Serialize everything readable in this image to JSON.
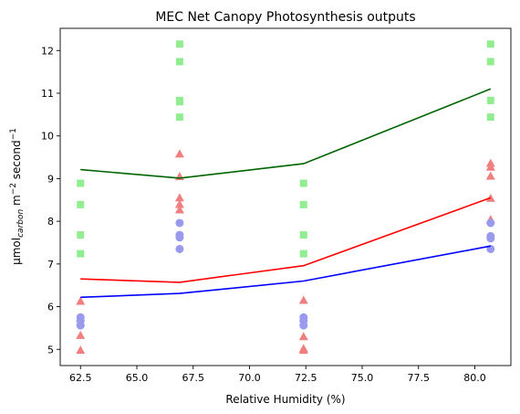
{
  "chart_data": {
    "type": "scatter",
    "title": "MEC Net Canopy Photosynthesis outputs",
    "xlabel": "Relative Humidity (%)",
    "ylabel_parts": {
      "base": "μmol",
      "sub": "carbon",
      "mid": " m",
      "sup1": "−2",
      "end": " second",
      "sup2": "−1"
    },
    "xlim": [
      61.6,
      81.6
    ],
    "ylim": [
      4.62,
      12.52
    ],
    "xticks": [
      62.5,
      65.0,
      67.5,
      70.0,
      72.5,
      75.0,
      77.5,
      80.0
    ],
    "xtick_labels": [
      "62.5",
      "65.0",
      "67.5",
      "70.0",
      "72.5",
      "75.0",
      "77.5",
      "80.0"
    ],
    "yticks": [
      5,
      6,
      7,
      8,
      9,
      10,
      11,
      12
    ],
    "ytick_labels": [
      "5",
      "6",
      "7",
      "8",
      "9",
      "10",
      "11",
      "12"
    ],
    "grid": false,
    "legend": false,
    "lines": [
      {
        "color": "#006400",
        "x": [
          62.5,
          66.9,
          72.4,
          80.7
        ],
        "y": [
          9.21,
          9.01,
          9.35,
          11.1
        ]
      },
      {
        "color": "#ff0000",
        "x": [
          62.5,
          66.9,
          72.4,
          80.7
        ],
        "y": [
          6.65,
          6.57,
          6.96,
          8.55
        ]
      },
      {
        "color": "#0000ff",
        "x": [
          62.5,
          66.9,
          72.4,
          80.7
        ],
        "y": [
          6.22,
          6.31,
          6.6,
          7.42
        ]
      }
    ],
    "scatter": [
      {
        "marker": "square",
        "color": "#90ee90",
        "points": [
          [
            62.5,
            8.89
          ],
          [
            62.5,
            8.39
          ],
          [
            62.5,
            7.68
          ],
          [
            62.5,
            7.24
          ],
          [
            66.9,
            12.15
          ],
          [
            66.9,
            11.74
          ],
          [
            66.9,
            10.83
          ],
          [
            66.9,
            10.8
          ],
          [
            66.9,
            10.44
          ],
          [
            72.4,
            8.89
          ],
          [
            72.4,
            8.39
          ],
          [
            72.4,
            7.68
          ],
          [
            72.4,
            7.24
          ],
          [
            80.7,
            12.15
          ],
          [
            80.7,
            11.74
          ],
          [
            80.7,
            10.83
          ],
          [
            80.7,
            10.44
          ]
        ]
      },
      {
        "marker": "triangle",
        "color": "#f08080",
        "points": [
          [
            62.5,
            6.13
          ],
          [
            62.5,
            5.74
          ],
          [
            62.5,
            5.33
          ],
          [
            62.5,
            4.98
          ],
          [
            66.9,
            9.58
          ],
          [
            66.9,
            9.05
          ],
          [
            66.9,
            8.55
          ],
          [
            66.9,
            8.4
          ],
          [
            66.9,
            8.27
          ],
          [
            72.4,
            6.15
          ],
          [
            72.4,
            5.74
          ],
          [
            72.4,
            5.3
          ],
          [
            72.4,
            5.02
          ],
          [
            72.4,
            4.98
          ],
          [
            80.7,
            9.36
          ],
          [
            80.7,
            9.27
          ],
          [
            80.7,
            9.06
          ],
          [
            80.7,
            8.54
          ],
          [
            80.7,
            8.04
          ]
        ]
      },
      {
        "marker": "circle",
        "color": "#9999ee",
        "points": [
          [
            62.5,
            5.75
          ],
          [
            62.5,
            5.67
          ],
          [
            62.5,
            5.56
          ],
          [
            66.9,
            7.96
          ],
          [
            66.9,
            7.68
          ],
          [
            66.9,
            7.62
          ],
          [
            66.9,
            7.35
          ],
          [
            72.4,
            5.75
          ],
          [
            72.4,
            5.67
          ],
          [
            72.4,
            5.56
          ],
          [
            80.7,
            7.96
          ],
          [
            80.7,
            7.65
          ],
          [
            80.7,
            7.6
          ],
          [
            80.7,
            7.35
          ]
        ]
      }
    ]
  }
}
